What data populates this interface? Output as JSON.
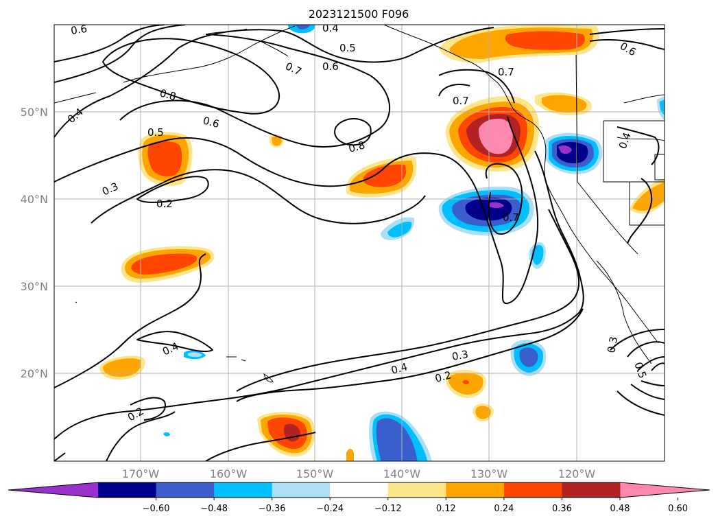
{
  "title": "2023121500 F096",
  "lon_labels": [
    "170°W",
    "160°W",
    "150°W",
    "140°W",
    "130°W",
    "120°W"
  ],
  "lat_labels": [
    "50°N",
    "40°N",
    "30°N",
    "20°N"
  ],
  "colorbar": {
    "ticks": [
      "−0.60",
      "−0.48",
      "−0.36",
      "−0.24",
      "−0.12",
      "0.12",
      "0.24",
      "0.36",
      "0.48",
      "0.60"
    ],
    "colors": [
      "#9932cc",
      "#00008b",
      "#3a5fcd",
      "#00bfff",
      "#aadff7",
      "#ffffff",
      "#fde68a",
      "#ffa500",
      "#ff4500",
      "#b22222",
      "#ff88b0"
    ]
  },
  "contour_labels": {
    "c06a": "0.6",
    "c04a": "0.4",
    "c05a": "0.5",
    "c06b": "0.6",
    "c07a": "0.7",
    "c06c": "0.6",
    "c07b": "0.7",
    "c08a": "0.8",
    "c07c": "0.7",
    "c04b": "0.4",
    "c05b": "0.5",
    "c06d": "0.6",
    "c08b": "0.8",
    "c03a": "0.3",
    "c02a": "0.2",
    "c04c": "0.4",
    "c07d": "0.7",
    "c04d": "0.4",
    "c03b": "0.3",
    "c02b": "0.2",
    "c02c": "0.2",
    "c03c": "0.3",
    "c05c": "0.5",
    "c04e": "0.4"
  }
}
